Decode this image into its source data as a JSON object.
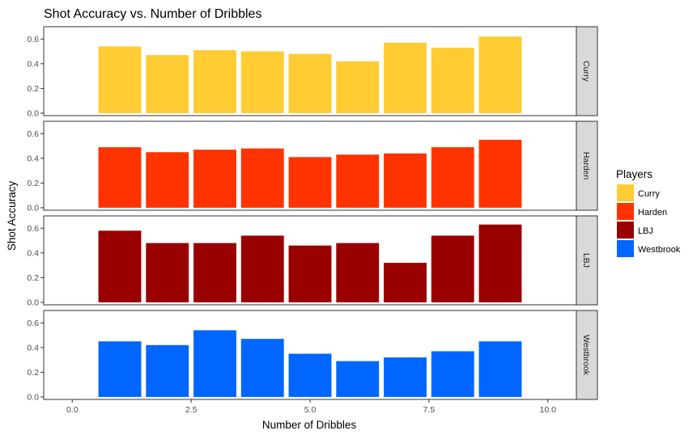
{
  "chart_data": {
    "type": "bar",
    "layout": "faceted-rows",
    "title": "Shot Accuracy vs. Number of Dribbles",
    "xlabel": "Number of Dribbles",
    "ylabel": "Shot Accuracy",
    "xlim": [
      -0.6,
      10.6
    ],
    "ylim": [
      -0.02,
      0.7
    ],
    "x_ticks": [
      0,
      2.5,
      5,
      7.5,
      10
    ],
    "x_tick_labels": [
      "0.0",
      "2.5",
      "5.0",
      "7.5",
      "10.0"
    ],
    "y_ticks": [
      0,
      0.2,
      0.4,
      0.6
    ],
    "y_tick_labels": [
      "0.0",
      "0.2",
      "0.4",
      "0.6"
    ],
    "x": [
      1,
      2,
      3,
      4,
      5,
      6,
      7,
      8,
      9
    ],
    "grid": false,
    "legend": {
      "title": "Players",
      "position": "right"
    },
    "series": [
      {
        "name": "Curry",
        "color": "#FFCC33",
        "values": [
          0.54,
          0.47,
          0.51,
          0.5,
          0.48,
          0.42,
          0.57,
          0.53,
          0.62
        ]
      },
      {
        "name": "Harden",
        "color": "#FF3300",
        "values": [
          0.49,
          0.45,
          0.47,
          0.48,
          0.41,
          0.43,
          0.44,
          0.49,
          0.55
        ]
      },
      {
        "name": "LBJ",
        "color": "#990000",
        "values": [
          0.58,
          0.48,
          0.48,
          0.54,
          0.46,
          0.48,
          0.32,
          0.54,
          0.63
        ]
      },
      {
        "name": "Westbrook",
        "color": "#0066FF",
        "values": [
          0.45,
          0.42,
          0.54,
          0.47,
          0.35,
          0.29,
          0.32,
          0.37,
          0.45
        ]
      }
    ]
  }
}
